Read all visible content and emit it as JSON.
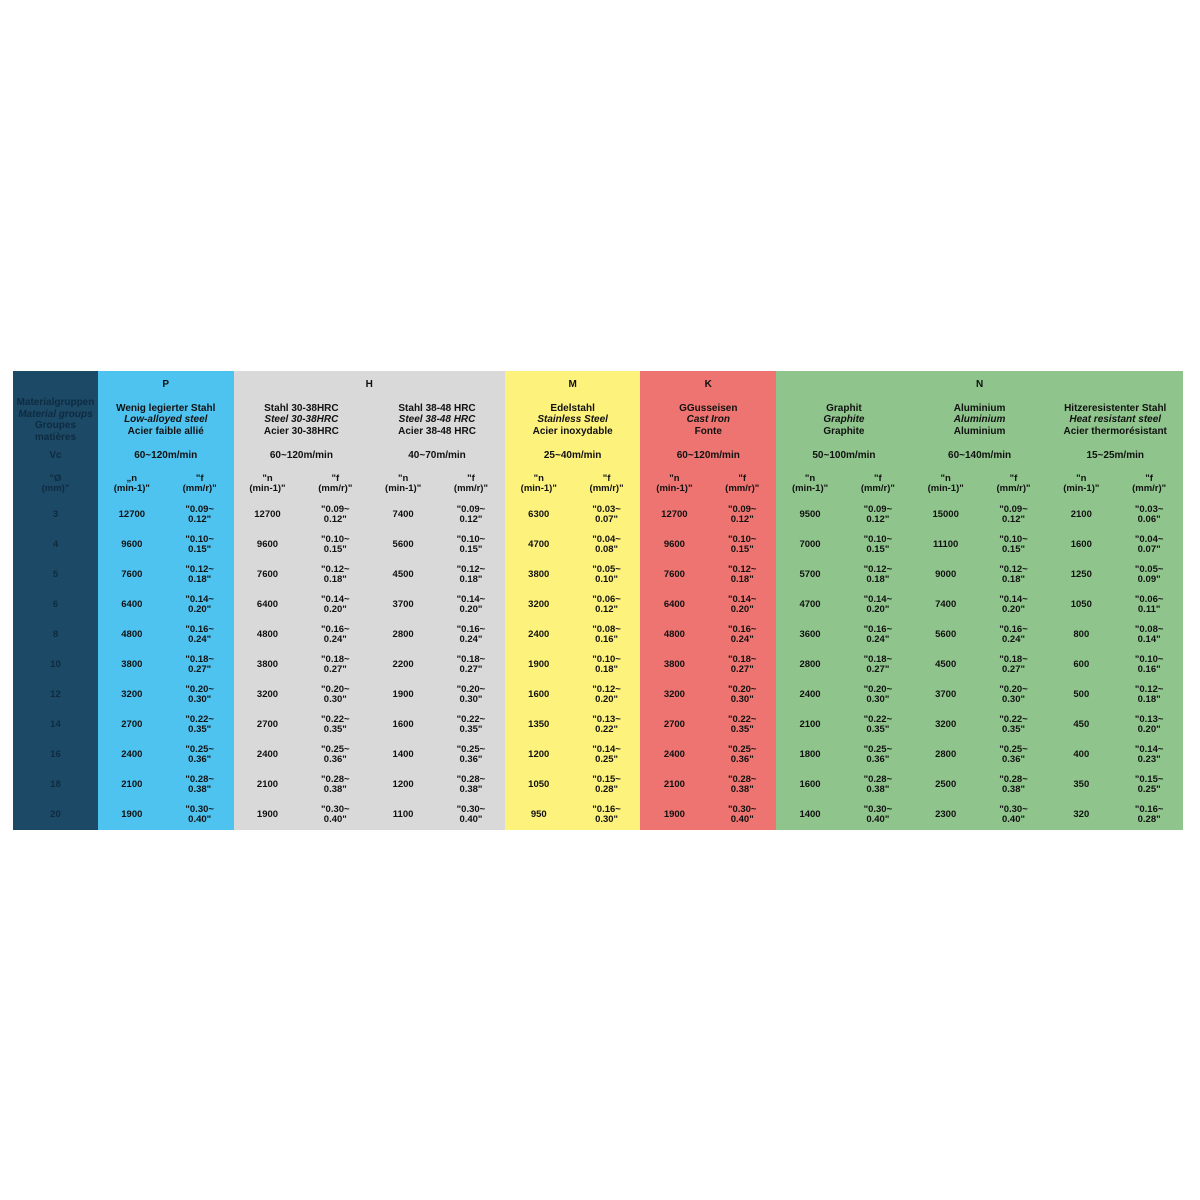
{
  "left": {
    "material_groups_de": "Materialgruppen",
    "material_groups_en": "Material groups",
    "material_groups_fr": "Groupes matières",
    "vc_label": "Vc",
    "diameter_header": "\"Ø\n(mm)\"",
    "diameters": [
      "3",
      "4",
      "5",
      "6",
      "8",
      "10",
      "12",
      "14",
      "16",
      "18",
      "20"
    ]
  },
  "groups": [
    {
      "letter": "P",
      "color": "#4fc3ef",
      "materials": [
        {
          "de": "Wenig legierter Stahl",
          "en": "Low-alloyed steel",
          "fr": "Acier faible allié",
          "vc": "60~120m/min",
          "n_header": "„n\n(min-1)\"",
          "f_header": "\"f\n(mm/r)\"",
          "n": [
            "12700",
            "9600",
            "7600",
            "6400",
            "4800",
            "3800",
            "3200",
            "2700",
            "2400",
            "2100",
            "1900"
          ],
          "f": [
            "\"0.09~\n0.12\"",
            "\"0.10~\n0.15\"",
            "\"0.12~\n0.18\"",
            "\"0.14~\n0.20\"",
            "\"0.16~\n0.24\"",
            "\"0.18~\n0.27\"",
            "\"0.20~\n0.30\"",
            "\"0.22~\n0.35\"",
            "\"0.25~\n0.36\"",
            "\"0.28~\n0.38\"",
            "\"0.30~\n0.40\""
          ]
        }
      ]
    },
    {
      "letter": "H",
      "color": "#d9d9d9",
      "materials": [
        {
          "de": "Stahl 30-38HRC",
          "en": "Steel 30-38HRC",
          "fr": "Acier 30-38HRC",
          "vc": "60~120m/min",
          "n_header": "\"n\n(min-1)\"",
          "f_header": "\"f\n(mm/r)\"",
          "n": [
            "12700",
            "9600",
            "7600",
            "6400",
            "4800",
            "3800",
            "3200",
            "2700",
            "2400",
            "2100",
            "1900"
          ],
          "f": [
            "\"0.09~\n0.12\"",
            "\"0.10~\n0.15\"",
            "\"0.12~\n0.18\"",
            "\"0.14~\n0.20\"",
            "\"0.16~\n0.24\"",
            "\"0.18~\n0.27\"",
            "\"0.20~\n0.30\"",
            "\"0.22~\n0.35\"",
            "\"0.25~\n0.36\"",
            "\"0.28~\n0.38\"",
            "\"0.30~\n0.40\""
          ]
        },
        {
          "de": "Stahl 38-48 HRC",
          "en": "Steel 38-48 HRC",
          "fr": "Acier 38-48 HRC",
          "vc": "40~70m/min",
          "n_header": "\"n\n(min-1)\"",
          "f_header": "\"f\n(mm/r)\"",
          "n": [
            "7400",
            "5600",
            "4500",
            "3700",
            "2800",
            "2200",
            "1900",
            "1600",
            "1400",
            "1200",
            "1100"
          ],
          "f": [
            "\"0.09~\n0.12\"",
            "\"0.10~\n0.15\"",
            "\"0.12~\n0.18\"",
            "\"0.14~\n0.20\"",
            "\"0.16~\n0.24\"",
            "\"0.18~\n0.27\"",
            "\"0.20~\n0.30\"",
            "\"0.22~\n0.35\"",
            "\"0.25~\n0.36\"",
            "\"0.28~\n0.38\"",
            "\"0.30~\n0.40\""
          ]
        }
      ]
    },
    {
      "letter": "M",
      "color": "#fdf27c",
      "materials": [
        {
          "de": "Edelstahl",
          "en": "Stainless Steel",
          "fr": "Acier inoxydable",
          "vc": "25~40m/min",
          "n_header": "\"n\n(min-1)\"",
          "f_header": "\"f\n(mm/r)\"",
          "n": [
            "6300",
            "4700",
            "3800",
            "3200",
            "2400",
            "1900",
            "1600",
            "1350",
            "1200",
            "1050",
            "950"
          ],
          "f": [
            "\"0.03~\n0.07\"",
            "\"0.04~\n0.08\"",
            "\"0.05~\n0.10\"",
            "\"0.06~\n0.12\"",
            "\"0.08~\n0.16\"",
            "\"0.10~\n0.18\"",
            "\"0.12~\n0.20\"",
            "\"0.13~\n0.22\"",
            "\"0.14~\n0.25\"",
            "\"0.15~\n0.28\"",
            "\"0.16~\n0.30\""
          ]
        }
      ]
    },
    {
      "letter": "K",
      "color": "#ee7471",
      "materials": [
        {
          "de": "GGusseisen",
          "en": "Cast Iron",
          "fr": "Fonte",
          "vc": "60~120m/min",
          "n_header": "\"n\n(min-1)\"",
          "f_header": "\"f\n(mm/r)\"",
          "n": [
            "12700",
            "9600",
            "7600",
            "6400",
            "4800",
            "3800",
            "3200",
            "2700",
            "2400",
            "2100",
            "1900"
          ],
          "f": [
            "\"0.09~\n0.12\"",
            "\"0.10~\n0.15\"",
            "\"0.12~\n0.18\"",
            "\"0.14~\n0.20\"",
            "\"0.16~\n0.24\"",
            "\"0.18~\n0.27\"",
            "\"0.20~\n0.30\"",
            "\"0.22~\n0.35\"",
            "\"0.25~\n0.36\"",
            "\"0.28~\n0.38\"",
            "\"0.30~\n0.40\""
          ]
        }
      ]
    },
    {
      "letter": "N",
      "color": "#8fc58c",
      "materials": [
        {
          "de": "Graphit",
          "en": "Graphite",
          "fr": "Graphite",
          "vc": "50~100m/min",
          "n_header": "\"n\n(min-1)\"",
          "f_header": "\"f\n(mm/r)\"",
          "n": [
            "9500",
            "7000",
            "5700",
            "4700",
            "3600",
            "2800",
            "2400",
            "2100",
            "1800",
            "1600",
            "1400"
          ],
          "f": [
            "\"0.09~\n0.12\"",
            "\"0.10~\n0.15\"",
            "\"0.12~\n0.18\"",
            "\"0.14~\n0.20\"",
            "\"0.16~\n0.24\"",
            "\"0.18~\n0.27\"",
            "\"0.20~\n0.30\"",
            "\"0.22~\n0.35\"",
            "\"0.25~\n0.36\"",
            "\"0.28~\n0.38\"",
            "\"0.30~\n0.40\""
          ]
        },
        {
          "de": "Aluminium",
          "en": "Aluminium",
          "fr": "Aluminium",
          "vc": "60~140m/min",
          "n_header": "\"n\n(min-1)\"",
          "f_header": "\"f\n(mm/r)\"",
          "n": [
            "15000",
            "11100",
            "9000",
            "7400",
            "5600",
            "4500",
            "3700",
            "3200",
            "2800",
            "2500",
            "2300"
          ],
          "f": [
            "\"0.09~\n0.12\"",
            "\"0.10~\n0.15\"",
            "\"0.12~\n0.18\"",
            "\"0.14~\n0.20\"",
            "\"0.16~\n0.24\"",
            "\"0.18~\n0.27\"",
            "\"0.20~\n0.30\"",
            "\"0.22~\n0.35\"",
            "\"0.25~\n0.36\"",
            "\"0.28~\n0.38\"",
            "\"0.30~\n0.40\""
          ]
        },
        {
          "de": "Hitzeresistenter Stahl",
          "en": "Heat resistant steel",
          "fr": "Acier thermorésistant",
          "vc": "15~25m/min",
          "n_header": "\"n\n(min-1)\"",
          "f_header": "\"f\n(mm/r)\"",
          "n": [
            "2100",
            "1600",
            "1250",
            "1050",
            "800",
            "600",
            "500",
            "450",
            "400",
            "350",
            "320"
          ],
          "f": [
            "\"0.03~\n0.06\"",
            "\"0.04~\n0.07\"",
            "\"0.05~\n0.09\"",
            "\"0.06~\n0.11\"",
            "\"0.08~\n0.14\"",
            "\"0.10~\n0.16\"",
            "\"0.12~\n0.18\"",
            "\"0.13~\n0.20\"",
            "\"0.14~\n0.23\"",
            "\"0.15~\n0.25\"",
            "\"0.16~\n0.28\""
          ]
        }
      ]
    }
  ]
}
